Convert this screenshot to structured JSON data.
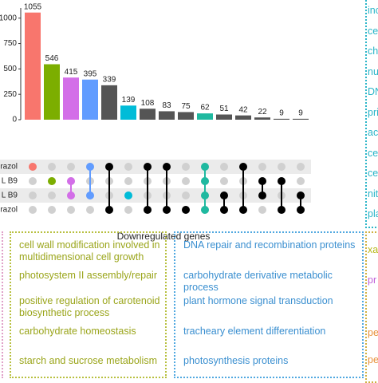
{
  "chart_data": {
    "type": "upset",
    "x_label": "Downregulated genes",
    "values": [
      1055,
      546,
      415,
      395,
      339,
      139,
      108,
      83,
      75,
      62,
      51,
      42,
      22,
      9,
      9
    ],
    "colors": [
      "#f8766d",
      "#7cae00",
      "#d36ee8",
      "#619cff",
      "#555555",
      "#00bcd8",
      "#555555",
      "#555555",
      "#555555",
      "#1fb9a0",
      "#555555",
      "#555555",
      "#555555",
      "#555555",
      "#555555"
    ],
    "sets": [
      "razol",
      "L B9",
      "L B9",
      "razol"
    ],
    "membership": [
      [
        0
      ],
      [
        1
      ],
      [
        1,
        2
      ],
      [
        0,
        2
      ],
      [
        0,
        3
      ],
      [
        2
      ],
      [
        0,
        3
      ],
      [
        0,
        3
      ],
      [
        3
      ],
      [
        0,
        1,
        2,
        3
      ],
      [
        2,
        3
      ],
      [
        0,
        3
      ],
      [
        1,
        2
      ],
      [
        1,
        3
      ],
      [
        2,
        3
      ]
    ],
    "ylim": [
      0,
      1100
    ],
    "yticks": [
      0,
      250,
      500,
      750,
      1000
    ]
  },
  "panels": {
    "left_box": {
      "color": "#9aa51a",
      "items": [
        "cell wall modification involved in multidimensional cell growth",
        "photosystem II assembly/repair",
        "positive regulation of carotenoid biosynthetic process",
        "carbohydrate homeostasis",
        "starch and sucrose metabolism"
      ]
    },
    "middle_box": {
      "color": "#3a8fd0",
      "items": [
        "DNA repair and recombination proteins",
        "carbohydrate derivative metabolic process",
        "plant hormone signal transduction",
        "tracheary element differentiation",
        "photosynthesis proteins"
      ]
    },
    "right_top": {
      "color": "#2bb5c8",
      "items": [
        "inc",
        "cel",
        "chl",
        "nu",
        "DN",
        "pri",
        "act",
        "cel",
        "cel",
        "nit",
        "pla"
      ]
    },
    "right_bottom": [
      {
        "text": "xa",
        "color": "#b8b81a"
      },
      {
        "text": "pr",
        "color": "#c060d8"
      },
      {
        "text": "pe",
        "color": "#e8903a"
      },
      {
        "text": "pe",
        "color": "#e8903a"
      }
    ]
  }
}
